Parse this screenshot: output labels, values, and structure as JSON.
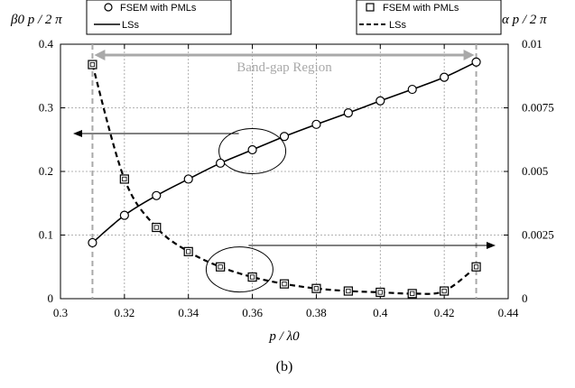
{
  "chart_data": {
    "type": "line",
    "x": [
      0.31,
      0.32,
      0.33,
      0.34,
      0.35,
      0.36,
      0.37,
      0.38,
      0.39,
      0.4,
      0.41,
      0.42,
      0.43
    ],
    "xlabel": "p / λ0",
    "xlim": [
      0.3,
      0.44
    ],
    "xticks": [
      "0.3",
      "0.32",
      "0.34",
      "0.36",
      "0.38",
      "0.4",
      "0.42",
      "0.44"
    ],
    "left_axis": {
      "label": "β0 p / 2 π",
      "ylim": [
        0,
        0.4
      ],
      "ticks": [
        "0",
        "0.1",
        "0.2",
        "0.3",
        "0.4"
      ]
    },
    "right_axis": {
      "label": "α p / 2 π",
      "ylim": [
        0,
        0.01
      ],
      "ticks": [
        "0",
        "0.0025",
        "0.005",
        "0.0075",
        "0.01"
      ]
    },
    "series": [
      {
        "name": "FSEM with PMLs",
        "marker": "circle",
        "axis": "left",
        "values": [
          0.088,
          0.131,
          0.162,
          0.188,
          0.213,
          0.234,
          0.255,
          0.274,
          0.292,
          0.311,
          0.329,
          0.348,
          0.372
        ]
      },
      {
        "name": "LSs",
        "style": "solid",
        "axis": "left",
        "values": [
          0.088,
          0.131,
          0.162,
          0.188,
          0.213,
          0.234,
          0.255,
          0.274,
          0.292,
          0.311,
          0.329,
          0.348,
          0.372
        ]
      },
      {
        "name": "FSEM with PMLs",
        "marker": "square",
        "axis": "right",
        "values": [
          0.0092,
          0.0047,
          0.0028,
          0.00185,
          0.00125,
          0.00085,
          0.00058,
          0.0004,
          0.0003,
          0.00025,
          0.0002,
          0.0003,
          0.00125
        ]
      },
      {
        "name": "LSs",
        "style": "dashed",
        "axis": "right",
        "values": [
          0.0092,
          0.0047,
          0.0028,
          0.00185,
          0.00125,
          0.00085,
          0.00058,
          0.0004,
          0.0003,
          0.00025,
          0.0002,
          0.0003,
          0.00125
        ]
      }
    ],
    "band_gap": {
      "label": "Band-gap Region",
      "x": [
        0.31,
        0.43
      ]
    },
    "grid": true,
    "legends": [
      "top-left",
      "top-right"
    ],
    "caption": "(b)",
    "colors": {
      "band": "#a9a9a9",
      "grid": "#9a9a9a",
      "ink": "#000000"
    }
  }
}
